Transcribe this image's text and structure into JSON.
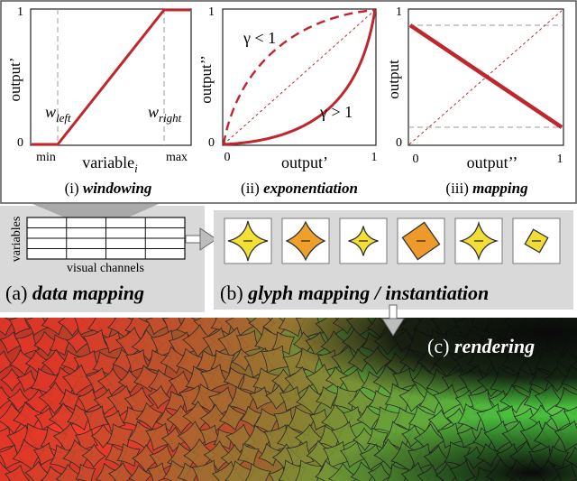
{
  "panel_windowing": {
    "y_axis_label": "output’",
    "x_axis_label": "variable",
    "x_axis_subscript": "i",
    "y_tick_top": "1",
    "y_tick_bottom": "0",
    "x_tick_min": "min",
    "x_tick_max": "max",
    "w_left": "w",
    "w_left_sub": "left",
    "w_right": "w",
    "w_right_sub": "right",
    "caption_num": "(i) ",
    "caption_word": "windowing"
  },
  "panel_exponentiation": {
    "y_axis_label": "output’’",
    "x_axis_label": "output’",
    "y_tick_top": "1",
    "y_tick_bottom": "0",
    "x_tick_left": "0",
    "x_tick_right": "1",
    "gamma_lt_label": "γ < 1",
    "gamma_gt_label": "γ > 1",
    "caption_num": "(ii) ",
    "caption_word": "exponentiation"
  },
  "panel_mapping": {
    "y_axis_label": "output",
    "x_axis_label": "output’’",
    "y_tick_top": "1",
    "y_tick_bottom": "0",
    "x_tick_left": "0",
    "x_tick_right": "1",
    "caption_num": "(iii) ",
    "caption_word": "mapping"
  },
  "data_mapping": {
    "rows_label": "variables",
    "cols_label": "visual channels",
    "caption_num": "(a) ",
    "caption_word": "data mapping"
  },
  "glyph_mapping": {
    "caption_num": "(b) ",
    "caption_word": "glyph mapping / instantiation",
    "glyphs": [
      {
        "color": "#f2e034"
      },
      {
        "color": "#eea02a"
      },
      {
        "color": "#f4e035"
      },
      {
        "color": "#ee9a2a"
      },
      {
        "color": "#f2de36"
      },
      {
        "color": "#f0dc3a"
      }
    ]
  },
  "rendering": {
    "caption_num": "(c) ",
    "caption_word": "rendering"
  },
  "colors": {
    "curve_red": "#c0272d",
    "panel_gray": "#d9d9d9",
    "arrow_gray": "#a9a9a9",
    "glyph_outline": "#333333"
  }
}
